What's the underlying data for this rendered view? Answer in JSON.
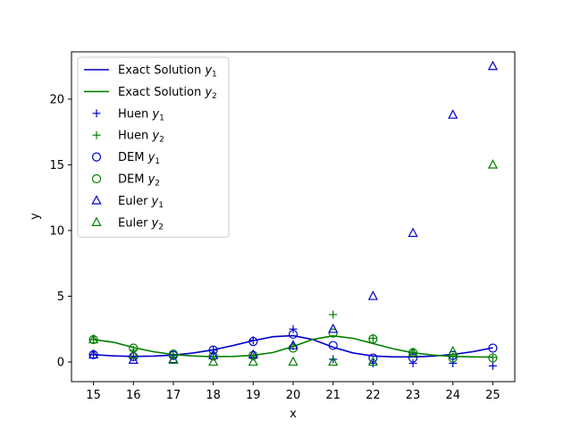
{
  "chart_data": {
    "type": "line",
    "title": "",
    "xlabel": "x",
    "ylabel": "y",
    "xlim": [
      14.45,
      25.55
    ],
    "ylim": [
      -1.5,
      23.6
    ],
    "x_ticks": [
      15,
      16,
      17,
      18,
      19,
      20,
      21,
      22,
      23,
      24,
      25
    ],
    "y_ticks": [
      0,
      5,
      10,
      15,
      20
    ],
    "grid": false,
    "legend_position": "top-left",
    "colors": {
      "blue": "#0000cc",
      "green": "#007f00"
    },
    "series": [
      {
        "name": "Exact Solution y1",
        "name_base": "Exact Solution ",
        "name_var": "y",
        "name_sub": "1",
        "style": "line",
        "color": "blue",
        "x": [
          15,
          15.5,
          16,
          16.5,
          17,
          17.5,
          18,
          18.5,
          19,
          19.5,
          20,
          20.5,
          21,
          21.5,
          22,
          22.5,
          23,
          23.5,
          24,
          24.5,
          25
        ],
        "y": [
          0.55,
          0.46,
          0.42,
          0.44,
          0.52,
          0.68,
          0.92,
          1.25,
          1.62,
          1.92,
          2.0,
          1.7,
          1.12,
          0.68,
          0.45,
          0.38,
          0.38,
          0.44,
          0.57,
          0.78,
          1.08
        ]
      },
      {
        "name": "Exact Solution y2",
        "name_base": "Exact Solution ",
        "name_var": "y",
        "name_sub": "2",
        "style": "line",
        "color": "green",
        "x": [
          15,
          15.5,
          16,
          16.5,
          17,
          17.5,
          18,
          18.5,
          19,
          19.5,
          20,
          20.5,
          21,
          21.5,
          22,
          22.5,
          23,
          23.5,
          24,
          24.5,
          25
        ],
        "y": [
          1.7,
          1.5,
          1.1,
          0.78,
          0.56,
          0.45,
          0.4,
          0.42,
          0.5,
          0.72,
          1.18,
          1.72,
          1.98,
          1.8,
          1.4,
          1.0,
          0.7,
          0.52,
          0.42,
          0.38,
          0.37
        ]
      },
      {
        "name": "Huen y1",
        "name_base": "Huen ",
        "name_var": "y",
        "name_sub": "1",
        "style": "plus",
        "color": "blue",
        "x": [
          15,
          16,
          17,
          18,
          19,
          20,
          21,
          22,
          23,
          24,
          25
        ],
        "y": [
          0.55,
          0.4,
          0.5,
          0.9,
          1.65,
          2.5,
          0.2,
          -0.1,
          -0.1,
          -0.1,
          -0.3
        ]
      },
      {
        "name": "Huen y2",
        "name_base": "Huen ",
        "name_var": "y",
        "name_sub": "2",
        "style": "plus",
        "color": "green",
        "x": [
          15,
          16,
          17,
          18,
          19,
          20,
          21,
          22,
          23,
          24,
          25
        ],
        "y": [
          1.7,
          0.9,
          0.55,
          0.4,
          0.4,
          1.2,
          3.6,
          1.8,
          0.7,
          0.4,
          0.35
        ]
      },
      {
        "name": "DEM y1",
        "name_base": "DEM ",
        "name_var": "y",
        "name_sub": "1",
        "style": "circle",
        "color": "blue",
        "x": [
          15,
          16,
          17,
          18,
          19,
          20,
          21,
          22,
          23,
          24,
          25
        ],
        "y": [
          0.55,
          0.4,
          0.5,
          0.9,
          1.55,
          2.1,
          1.25,
          0.3,
          0.3,
          0.5,
          1.05
        ]
      },
      {
        "name": "DEM y2",
        "name_base": "DEM ",
        "name_var": "y",
        "name_sub": "2",
        "style": "circle",
        "color": "green",
        "x": [
          15,
          16,
          17,
          18,
          19,
          20,
          21,
          22,
          23,
          24,
          25
        ],
        "y": [
          1.7,
          1.05,
          0.6,
          0.45,
          0.5,
          1.05,
          2.2,
          1.75,
          0.7,
          0.3,
          0.3
        ]
      },
      {
        "name": "Euler y1",
        "name_base": "Euler ",
        "name_var": "y",
        "name_sub": "1",
        "style": "triangle",
        "color": "blue",
        "x": [
          15,
          16,
          17,
          18,
          19,
          20,
          21,
          22,
          23,
          24,
          25
        ],
        "y": [
          0.55,
          0.15,
          0.2,
          0.5,
          0.55,
          1.25,
          2.5,
          5.0,
          9.8,
          18.8,
          22.5
        ]
      },
      {
        "name": "Euler y2",
        "name_base": "Euler ",
        "name_var": "y",
        "name_sub": "2",
        "style": "triangle",
        "color": "green",
        "x": [
          15,
          16,
          17,
          18,
          19,
          20,
          21,
          22,
          23,
          24,
          25
        ],
        "y": [
          1.7,
          0.55,
          0.15,
          0.0,
          0.0,
          0.0,
          0.0,
          0.0,
          0.7,
          0.8,
          15.0
        ]
      }
    ]
  }
}
